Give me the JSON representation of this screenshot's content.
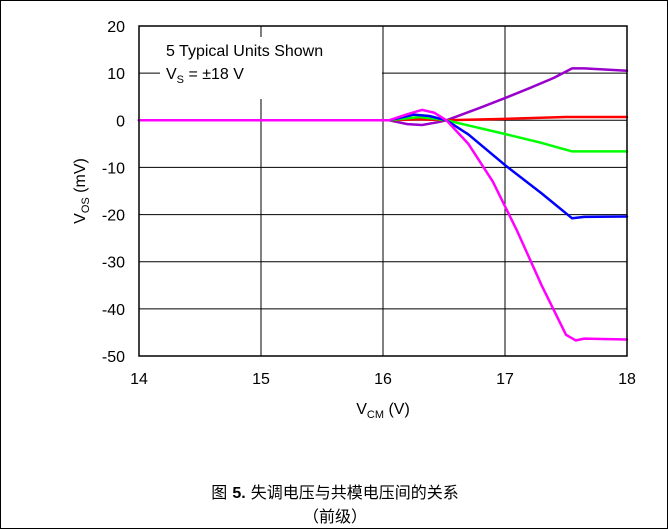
{
  "chart_data": {
    "type": "line",
    "xlabel": "V",
    "xlabel_sub": "CM",
    "xlabel_unit": " (V)",
    "ylabel": "V",
    "ylabel_sub": "OS",
    "ylabel_unit": " (mV)",
    "xlim": [
      14,
      18
    ],
    "ylim": [
      -50,
      20
    ],
    "xticks": [
      14,
      15,
      16,
      17,
      18
    ],
    "yticks": [
      20,
      10,
      0,
      -10,
      -20,
      -30,
      -40,
      -50
    ],
    "xtick_labels": [
      "14",
      "15",
      "16",
      "17",
      "18"
    ],
    "ytick_labels": [
      "20",
      "10",
      "0",
      "-10",
      "-20",
      "-30",
      "-40",
      "-50"
    ],
    "grid": true,
    "annotation_line1": "5 Typical Units Shown",
    "annotation_line2_main": "V",
    "annotation_line2_sub": "S",
    "annotation_line2_rest": " = ±18 V",
    "series": [
      {
        "color": "#9900cc",
        "points": [
          [
            14,
            0
          ],
          [
            16.05,
            0
          ],
          [
            16.2,
            -0.8
          ],
          [
            16.32,
            -1.0
          ],
          [
            16.45,
            -0.4
          ],
          [
            16.52,
            0
          ],
          [
            16.8,
            2.7
          ],
          [
            17.0,
            4.7
          ],
          [
            17.2,
            6.8
          ],
          [
            17.4,
            9.0
          ],
          [
            17.55,
            11.0
          ],
          [
            17.65,
            11.0
          ],
          [
            18,
            10.5
          ]
        ]
      },
      {
        "color": "#ff0000",
        "points": [
          [
            14,
            0
          ],
          [
            16.05,
            0
          ],
          [
            16.3,
            0.2
          ],
          [
            16.52,
            0
          ],
          [
            17.0,
            0.3
          ],
          [
            17.5,
            0.7
          ],
          [
            18,
            0.7
          ]
        ]
      },
      {
        "color": "#00ff00",
        "points": [
          [
            14,
            0
          ],
          [
            16.05,
            0
          ],
          [
            16.3,
            0.7
          ],
          [
            16.52,
            0
          ],
          [
            17.0,
            -2.9
          ],
          [
            17.3,
            -4.8
          ],
          [
            17.55,
            -6.6
          ],
          [
            17.65,
            -6.6
          ],
          [
            18,
            -6.6
          ]
        ]
      },
      {
        "color": "#0000ff",
        "points": [
          [
            14,
            0
          ],
          [
            16.05,
            0
          ],
          [
            16.25,
            1.2
          ],
          [
            16.38,
            0.9
          ],
          [
            16.52,
            0
          ],
          [
            16.7,
            -3.0
          ],
          [
            17.0,
            -9.5
          ],
          [
            17.3,
            -15.5
          ],
          [
            17.55,
            -20.8
          ],
          [
            17.65,
            -20.5
          ],
          [
            18,
            -20.4
          ]
        ]
      },
      {
        "color": "#ff00ff",
        "points": [
          [
            14,
            0
          ],
          [
            16.05,
            0
          ],
          [
            16.2,
            1.3
          ],
          [
            16.32,
            2.2
          ],
          [
            16.42,
            1.6
          ],
          [
            16.52,
            0
          ],
          [
            16.7,
            -5.0
          ],
          [
            16.9,
            -13.0
          ],
          [
            17.1,
            -23.5
          ],
          [
            17.3,
            -35.0
          ],
          [
            17.5,
            -45.5
          ],
          [
            17.58,
            -46.7
          ],
          [
            17.65,
            -46.3
          ],
          [
            18,
            -46.5
          ]
        ]
      }
    ]
  },
  "caption": {
    "prefix": "图 ",
    "number": "5.",
    "text": " 失调电压与共模电压间的关系",
    "line2": "（前级）"
  }
}
